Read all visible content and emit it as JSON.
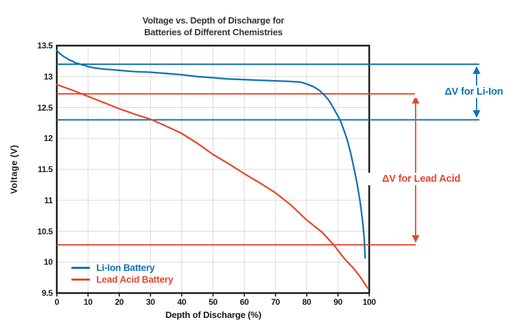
{
  "title_display": {
    "line1": "Voltage vs. Depth of Discharge for",
    "line2": "Batteries of Different Chemistries"
  },
  "colors": {
    "li_ion": "#0E72B8",
    "lead_acid": "#E5472E",
    "grid": "#DADADA",
    "axis": "#1A1A1A",
    "title_text": "#333333"
  },
  "chart_data": {
    "type": "line",
    "title": "Voltage vs. Depth of Discharge for Batteries of Different Chemistries",
    "xlabel": "Depth of Discharge (%)",
    "ylabel": "Voltage (V)",
    "xlim": [
      0,
      100
    ],
    "ylim": [
      9.5,
      13.5
    ],
    "x_ticks": [
      0,
      10,
      20,
      30,
      40,
      50,
      60,
      70,
      80,
      90,
      100
    ],
    "y_ticks": [
      9.5,
      10,
      10.5,
      11,
      11.5,
      12,
      12.5,
      13,
      13.5
    ],
    "grid": true,
    "legend_position": "lower-left-inside",
    "series": [
      {
        "name": "Li-Ion Battery",
        "color": "#0E72B8",
        "points": [
          [
            0,
            13.42
          ],
          [
            1,
            13.37
          ],
          [
            2,
            13.33
          ],
          [
            3,
            13.3
          ],
          [
            4,
            13.27
          ],
          [
            5,
            13.25
          ],
          [
            6,
            13.22
          ],
          [
            7,
            13.21
          ],
          [
            8,
            13.19
          ],
          [
            9,
            13.18
          ],
          [
            10,
            13.16
          ],
          [
            12,
            13.14
          ],
          [
            15,
            13.12
          ],
          [
            18,
            13.11
          ],
          [
            20,
            13.1
          ],
          [
            25,
            13.08
          ],
          [
            30,
            13.07
          ],
          [
            35,
            13.05
          ],
          [
            40,
            13.03
          ],
          [
            45,
            13.0
          ],
          [
            50,
            12.98
          ],
          [
            55,
            12.96
          ],
          [
            60,
            12.95
          ],
          [
            65,
            12.94
          ],
          [
            70,
            12.93
          ],
          [
            75,
            12.92
          ],
          [
            78,
            12.91
          ],
          [
            80,
            12.88
          ],
          [
            82,
            12.84
          ],
          [
            84,
            12.78
          ],
          [
            85,
            12.73
          ],
          [
            86,
            12.68
          ],
          [
            87,
            12.62
          ],
          [
            88,
            12.54
          ],
          [
            89,
            12.45
          ],
          [
            90,
            12.36
          ],
          [
            91,
            12.26
          ],
          [
            92,
            12.12
          ],
          [
            93,
            11.97
          ],
          [
            94,
            11.78
          ],
          [
            95,
            11.55
          ],
          [
            96,
            11.3
          ],
          [
            97,
            11.0
          ],
          [
            97.5,
            10.82
          ],
          [
            98,
            10.6
          ],
          [
            98.4,
            10.38
          ],
          [
            98.7,
            10.07
          ]
        ]
      },
      {
        "name": "Lead Acid Battery",
        "color": "#E5472E",
        "points": [
          [
            0,
            12.87
          ],
          [
            5,
            12.78
          ],
          [
            10,
            12.68
          ],
          [
            15,
            12.58
          ],
          [
            20,
            12.48
          ],
          [
            25,
            12.39
          ],
          [
            30,
            12.31
          ],
          [
            35,
            12.2
          ],
          [
            40,
            12.08
          ],
          [
            45,
            11.92
          ],
          [
            50,
            11.74
          ],
          [
            55,
            11.59
          ],
          [
            60,
            11.43
          ],
          [
            65,
            11.28
          ],
          [
            70,
            11.12
          ],
          [
            75,
            10.92
          ],
          [
            80,
            10.68
          ],
          [
            85,
            10.48
          ],
          [
            88.6,
            10.28
          ],
          [
            92,
            10.06
          ],
          [
            95,
            9.9
          ],
          [
            97,
            9.77
          ],
          [
            99.5,
            9.58
          ]
        ]
      }
    ],
    "reference_lines": [
      {
        "series": "Li-Ion Battery",
        "value": 13.2,
        "color": "#0E72B8"
      },
      {
        "series": "Li-Ion Battery",
        "value": 12.3,
        "color": "#0E72B8"
      },
      {
        "series": "Lead Acid Battery",
        "value": 12.72,
        "color": "#E5472E"
      },
      {
        "series": "Lead Acid Battery",
        "value": 10.28,
        "color": "#E5472E"
      }
    ],
    "annotations": [
      {
        "text": "ΔV for Li-Ion",
        "color": "#0E72B8",
        "between_values": [
          12.3,
          13.2
        ]
      },
      {
        "text": "ΔV for Lead Acid",
        "color": "#E5472E",
        "between_values": [
          10.28,
          12.72
        ]
      }
    ]
  },
  "legend": {
    "items": [
      {
        "label": "Li-Ion Battery",
        "color": "#0E72B8"
      },
      {
        "label": "Lead Acid Battery",
        "color": "#E5472E"
      }
    ]
  }
}
